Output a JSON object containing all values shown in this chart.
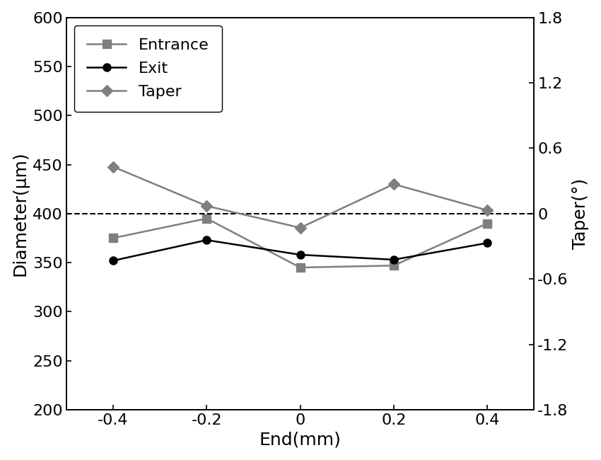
{
  "x": [
    -0.4,
    -0.2,
    0,
    0.2,
    0.4
  ],
  "entrance_y": [
    375,
    395,
    345,
    347,
    390
  ],
  "exit_y": [
    352,
    373,
    358,
    353,
    370
  ],
  "taper_y": [
    0.43,
    0.07,
    -0.13,
    0.27,
    0.03
  ],
  "entrance_color": "#7f7f7f",
  "exit_color": "#000000",
  "taper_color": "#7f7f7f",
  "dashed_line_y": 400,
  "ylim_left": [
    200,
    600
  ],
  "ylim_right": [
    -1.8,
    1.8
  ],
  "yticks_left": [
    200,
    250,
    300,
    350,
    400,
    450,
    500,
    550,
    600
  ],
  "yticks_right": [
    -1.8,
    -1.2,
    -0.6,
    0.0,
    0.6,
    1.2,
    1.8
  ],
  "xticks": [
    -0.4,
    -0.2,
    0,
    0.2,
    0.4
  ],
  "xlabel": "End(mm)",
  "ylabel_left": "Diameter(μm)",
  "ylabel_right": "Taper(°)",
  "legend_labels": [
    "Entrance",
    "Exit",
    "Taper"
  ],
  "marker_entrance": "s",
  "marker_exit": "o",
  "marker_taper": "D",
  "linewidth": 1.8,
  "markersize": 8,
  "fontsize_labels": 18,
  "fontsize_ticks": 16,
  "fontsize_legend": 16
}
